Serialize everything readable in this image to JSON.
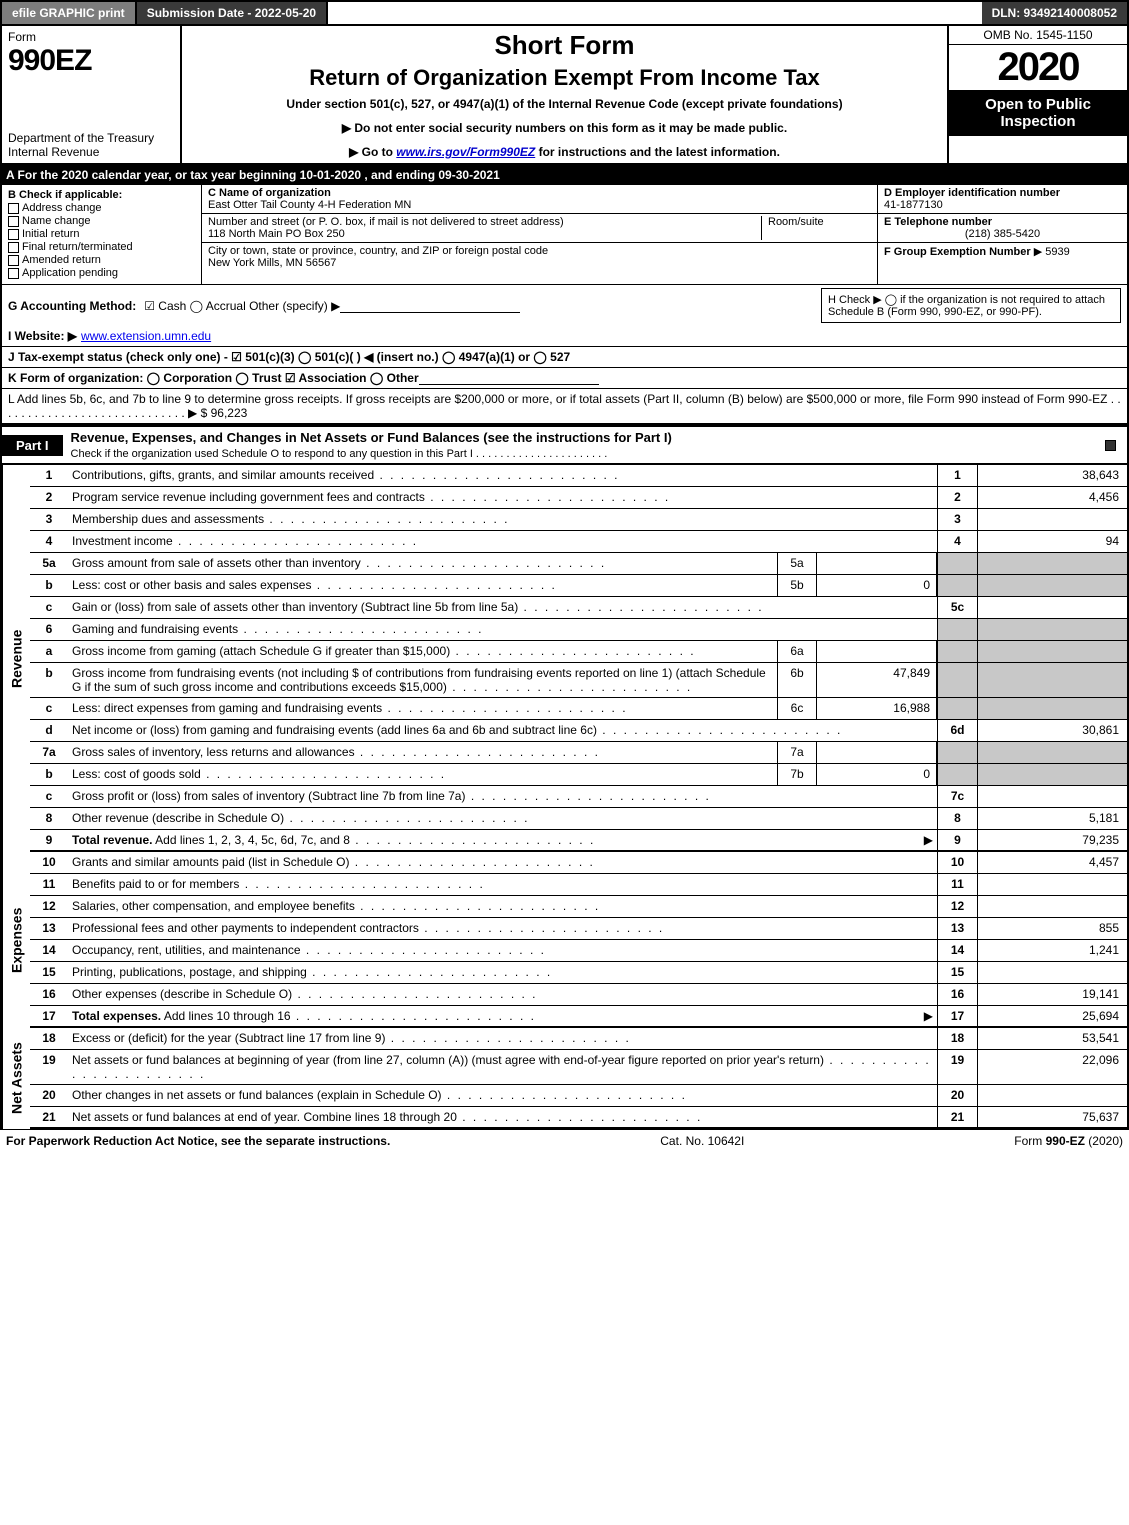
{
  "topbar": {
    "efile": "efile GRAPHIC print",
    "submission": "Submission Date - 2022-05-20",
    "dln": "DLN: 93492140008052"
  },
  "header": {
    "form_word": "Form",
    "form_number": "990EZ",
    "dept1": "Department of the Treasury",
    "dept2": "Internal Revenue",
    "short_form": "Short Form",
    "return_title": "Return of Organization Exempt From Income Tax",
    "under": "Under section 501(c), 527, or 4947(a)(1) of the Internal Revenue Code (except private foundations)",
    "line1": "▶ Do not enter social security numbers on this form as it may be made public.",
    "line2_pre": "▶ Go to ",
    "line2_link": "www.irs.gov/Form990EZ",
    "line2_post": " for instructions and the latest information.",
    "omb": "OMB No. 1545-1150",
    "year": "2020",
    "open": "Open to Public Inspection"
  },
  "taxyear": "A  For the 2020 calendar year, or tax year beginning 10-01-2020 , and ending 09-30-2021",
  "sectionB": {
    "heading": "B  Check if applicable:",
    "opts": [
      "Address change",
      "Name change",
      "Initial return",
      "Final return/terminated",
      "Amended return",
      "Application pending"
    ]
  },
  "sectionC": {
    "name_lbl": "C Name of organization",
    "name_val": "East Otter Tail County 4-H Federation MN",
    "street_lbl": "Number and street (or P. O. box, if mail is not delivered to street address)",
    "street_val": "118 North Main PO Box 250",
    "room_lbl": "Room/suite",
    "city_lbl": "City or town, state or province, country, and ZIP or foreign postal code",
    "city_val": "New York Mills, MN  56567"
  },
  "sectionD": {
    "ein_lbl": "D Employer identification number",
    "ein_val": "41-1877130",
    "tel_lbl": "E Telephone number",
    "tel_val": "(218) 385-5420",
    "grp_lbl": "F Group Exemption Number",
    "grp_val": "▶ 5939"
  },
  "rowG": {
    "label": "G Accounting Method:",
    "opts": "☑ Cash   ◯ Accrual   Other (specify) ▶"
  },
  "rowH": {
    "text": "H  Check ▶  ◯  if the organization is not required to attach Schedule B (Form 990, 990-EZ, or 990-PF)."
  },
  "rowI": {
    "label": "I Website: ▶",
    "val": "www.extension.umn.edu"
  },
  "rowJ": {
    "text": "J Tax-exempt status (check only one) -  ☑ 501(c)(3)  ◯ 501(c)(  ) ◀ (insert no.)  ◯ 4947(a)(1) or  ◯ 527"
  },
  "rowK": {
    "text": "K Form of organization:   ◯ Corporation   ◯ Trust   ☑ Association   ◯ Other"
  },
  "rowL": {
    "text": "L Add lines 5b, 6c, and 7b to line 9 to determine gross receipts. If gross receipts are $200,000 or more, or if total assets (Part II, column (B) below) are $500,000 or more, file Form 990 instead of Form 990-EZ  .  .  .  .  .  .  .  .  .  .  .  .  .  .  .  .  .  .  .  .  .  .  .  .  .  .  .  .  .  ▶ $ 96,223"
  },
  "part1": {
    "tag": "Part I",
    "title": "Revenue, Expenses, and Changes in Net Assets or Fund Balances (see the instructions for Part I)",
    "sub": "Check if the organization used Schedule O to respond to any question in this Part I .  .  .  .  .  .  .  .  .  .  .  .  .  .  .  .  .  .  .  .  .  ."
  },
  "sides": {
    "revenue": "Revenue",
    "expenses": "Expenses",
    "netassets": "Net Assets"
  },
  "lines": [
    {
      "n": "1",
      "d": "Contributions, gifts, grants, and similar amounts received",
      "num": "1",
      "val": "38,643"
    },
    {
      "n": "2",
      "d": "Program service revenue including government fees and contracts",
      "num": "2",
      "val": "4,456"
    },
    {
      "n": "3",
      "d": "Membership dues and assessments",
      "num": "3",
      "val": ""
    },
    {
      "n": "4",
      "d": "Investment income",
      "num": "4",
      "val": "94"
    },
    {
      "n": "5a",
      "d": "Gross amount from sale of assets other than inventory",
      "sub": "5a",
      "subval": ""
    },
    {
      "n": "b",
      "d": "Less: cost or other basis and sales expenses",
      "sub": "5b",
      "subval": "0"
    },
    {
      "n": "c",
      "d": "Gain or (loss) from sale of assets other than inventory (Subtract line 5b from line 5a)",
      "num": "5c",
      "val": ""
    },
    {
      "n": "6",
      "d": "Gaming and fundraising events"
    },
    {
      "n": "a",
      "d": "Gross income from gaming (attach Schedule G if greater than $15,000)",
      "sub": "6a",
      "subval": ""
    },
    {
      "n": "b",
      "d": "Gross income from fundraising events (not including $                 of contributions from fundraising events reported on line 1) (attach Schedule G if the sum of such gross income and contributions exceeds $15,000)",
      "sub": "6b",
      "subval": "47,849"
    },
    {
      "n": "c",
      "d": "Less: direct expenses from gaming and fundraising events",
      "sub": "6c",
      "subval": "16,988"
    },
    {
      "n": "d",
      "d": "Net income or (loss) from gaming and fundraising events (add lines 6a and 6b and subtract line 6c)",
      "num": "6d",
      "val": "30,861"
    },
    {
      "n": "7a",
      "d": "Gross sales of inventory, less returns and allowances",
      "sub": "7a",
      "subval": ""
    },
    {
      "n": "b",
      "d": "Less: cost of goods sold",
      "sub": "7b",
      "subval": "0"
    },
    {
      "n": "c",
      "d": "Gross profit or (loss) from sales of inventory (Subtract line 7b from line 7a)",
      "num": "7c",
      "val": ""
    },
    {
      "n": "8",
      "d": "Other revenue (describe in Schedule O)",
      "num": "8",
      "val": "5,181"
    },
    {
      "n": "9",
      "d": "Total revenue. Add lines 1, 2, 3, 4, 5c, 6d, 7c, and 8",
      "num": "9",
      "val": "79,235",
      "bold": true,
      "arrow": true
    },
    {
      "n": "10",
      "d": "Grants and similar amounts paid (list in Schedule O)",
      "num": "10",
      "val": "4,457"
    },
    {
      "n": "11",
      "d": "Benefits paid to or for members",
      "num": "11",
      "val": ""
    },
    {
      "n": "12",
      "d": "Salaries, other compensation, and employee benefits",
      "num": "12",
      "val": ""
    },
    {
      "n": "13",
      "d": "Professional fees and other payments to independent contractors",
      "num": "13",
      "val": "855"
    },
    {
      "n": "14",
      "d": "Occupancy, rent, utilities, and maintenance",
      "num": "14",
      "val": "1,241"
    },
    {
      "n": "15",
      "d": "Printing, publications, postage, and shipping",
      "num": "15",
      "val": ""
    },
    {
      "n": "16",
      "d": "Other expenses (describe in Schedule O)",
      "num": "16",
      "val": "19,141"
    },
    {
      "n": "17",
      "d": "Total expenses. Add lines 10 through 16",
      "num": "17",
      "val": "25,694",
      "bold": true,
      "arrow": true
    },
    {
      "n": "18",
      "d": "Excess or (deficit) for the year (Subtract line 17 from line 9)",
      "num": "18",
      "val": "53,541"
    },
    {
      "n": "19",
      "d": "Net assets or fund balances at beginning of year (from line 27, column (A)) (must agree with end-of-year figure reported on prior year's return)",
      "num": "19",
      "val": "22,096"
    },
    {
      "n": "20",
      "d": "Other changes in net assets or fund balances (explain in Schedule O)",
      "num": "20",
      "val": ""
    },
    {
      "n": "21",
      "d": "Net assets or fund balances at end of year. Combine lines 18 through 20",
      "num": "21",
      "val": "75,637"
    }
  ],
  "footer": {
    "left": "For Paperwork Reduction Act Notice, see the separate instructions.",
    "mid": "Cat. No. 10642I",
    "right_pre": "Form ",
    "right_bold": "990-EZ",
    "right_post": " (2020)"
  },
  "colors": {
    "black": "#000000",
    "darkgray": "#3a3a3a",
    "midgray": "#7d7d7d",
    "shade": "#c8c8c8",
    "link": "#0000cc"
  }
}
